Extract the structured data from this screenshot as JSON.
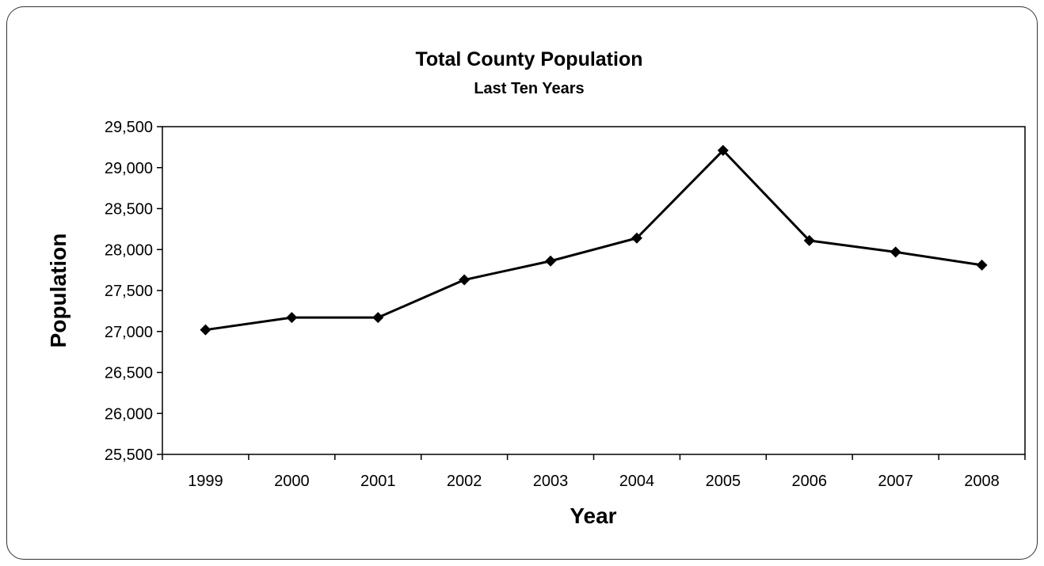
{
  "chart_data": {
    "type": "line",
    "title": "Total County Population",
    "subtitle": "Last Ten Years",
    "xlabel": "Year",
    "ylabel": "Population",
    "categories": [
      "1999",
      "2000",
      "2001",
      "2002",
      "2003",
      "2004",
      "2005",
      "2006",
      "2007",
      "2008"
    ],
    "series": [
      {
        "values": [
          27020,
          27170,
          27170,
          27630,
          27860,
          28140,
          29210,
          28110,
          27970,
          27810
        ],
        "color": "#000000",
        "marker": "diamond"
      }
    ],
    "ylim": [
      25500,
      29500
    ],
    "yticks": [
      25500,
      26000,
      26500,
      27000,
      27500,
      28000,
      28500,
      29000,
      29500
    ],
    "ytick_labels": [
      "25,500",
      "26,000",
      "26,500",
      "27,000",
      "27,500",
      "28,000",
      "28,500",
      "29,000",
      "29,500"
    ],
    "grid": false,
    "legend": "none"
  }
}
